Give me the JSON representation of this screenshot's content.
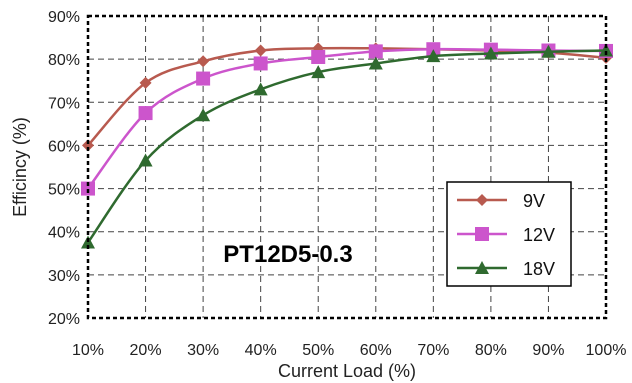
{
  "chart_data": {
    "type": "line",
    "xlabel": "Current Load (%)",
    "ylabel": "Efficincy (%)",
    "categories": [
      "10%",
      "20%",
      "30%",
      "40%",
      "50%",
      "60%",
      "70%",
      "80%",
      "90%",
      "100%"
    ],
    "x": [
      10,
      20,
      30,
      40,
      50,
      60,
      70,
      80,
      90,
      100
    ],
    "xlim": [
      10,
      100
    ],
    "ylim": [
      20,
      90
    ],
    "y_ticks": [
      "20%",
      "30%",
      "40%",
      "50%",
      "60%",
      "70%",
      "80%",
      "90%"
    ],
    "grid": true,
    "legend_position": "bottom-right",
    "annotation": "PT12D5-0.3",
    "series": [
      {
        "name": "9V",
        "color": "#b85a4f",
        "marker": "diamond",
        "values": [
          60,
          74.5,
          79.5,
          82,
          82.5,
          82.5,
          82.3,
          82,
          81.5,
          80.3
        ]
      },
      {
        "name": "12V",
        "color": "#cc55cc",
        "marker": "square",
        "values": [
          50,
          67.5,
          75.5,
          79,
          80.5,
          81.8,
          82.3,
          82.2,
          82,
          81.9
        ]
      },
      {
        "name": "18V",
        "color": "#2f6a2f",
        "marker": "triangle",
        "values": [
          37.5,
          56.5,
          67,
          73,
          77,
          79,
          80.7,
          81.3,
          81.7,
          82
        ]
      }
    ]
  }
}
